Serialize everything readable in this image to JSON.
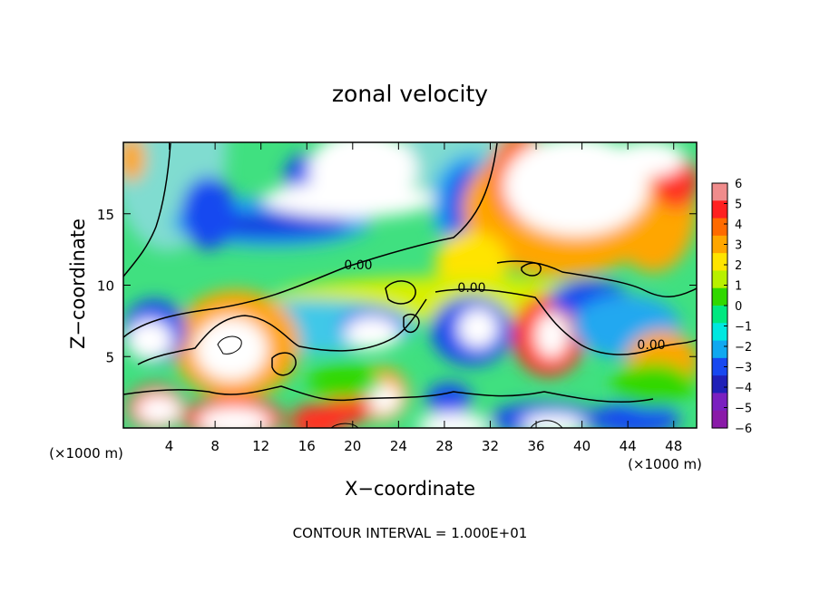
{
  "chart_data": {
    "type": "heatmap",
    "title": "zonal velocity",
    "xlabel": "X−coordinate",
    "ylabel": "Z−coordinate",
    "x_unit_label": "(×1000 m)",
    "z_unit_label": "(×1000 m)",
    "footer": "CONTOUR INTERVAL = 1.000E+01",
    "xlim": [
      0,
      50
    ],
    "ylim": [
      0,
      20
    ],
    "x_ticks": [
      4,
      8,
      12,
      16,
      20,
      24,
      28,
      32,
      36,
      40,
      44,
      48
    ],
    "y_ticks": [
      5,
      10,
      15
    ],
    "colorbar": {
      "ticks": [
        6,
        5,
        4,
        3,
        2,
        1,
        0,
        -1,
        -2,
        -3,
        -4,
        -5,
        -6
      ],
      "tick_labels": [
        "6",
        "5",
        "4",
        "3",
        "2",
        "1",
        "0",
        "−1",
        "−2",
        "−3",
        "−4",
        "−5",
        "−6"
      ],
      "colors": [
        "#f08c8c",
        "#ff2020",
        "#ff6a00",
        "#ffa600",
        "#ffe400",
        "#b8f000",
        "#30d800",
        "#00e880",
        "#00e8e0",
        "#10a8f0",
        "#1848f0",
        "#2020b8",
        "#7a20c0",
        "#8a1aa8"
      ]
    },
    "contour_labels": [
      "0.00",
      "0.00",
      "0.00"
    ]
  }
}
